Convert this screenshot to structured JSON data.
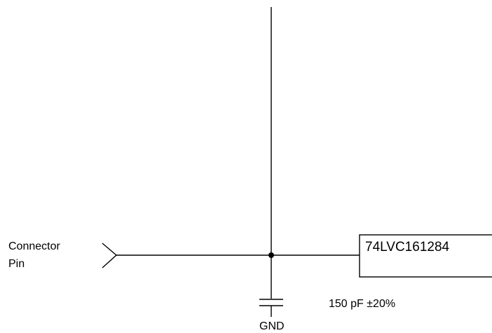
{
  "connector": {
    "line1": "Connector",
    "line2": "Pin"
  },
  "chip": {
    "name": "74LVC161284"
  },
  "capacitor": {
    "value": "150 pF ±20%"
  },
  "ground": {
    "label": "GND"
  }
}
